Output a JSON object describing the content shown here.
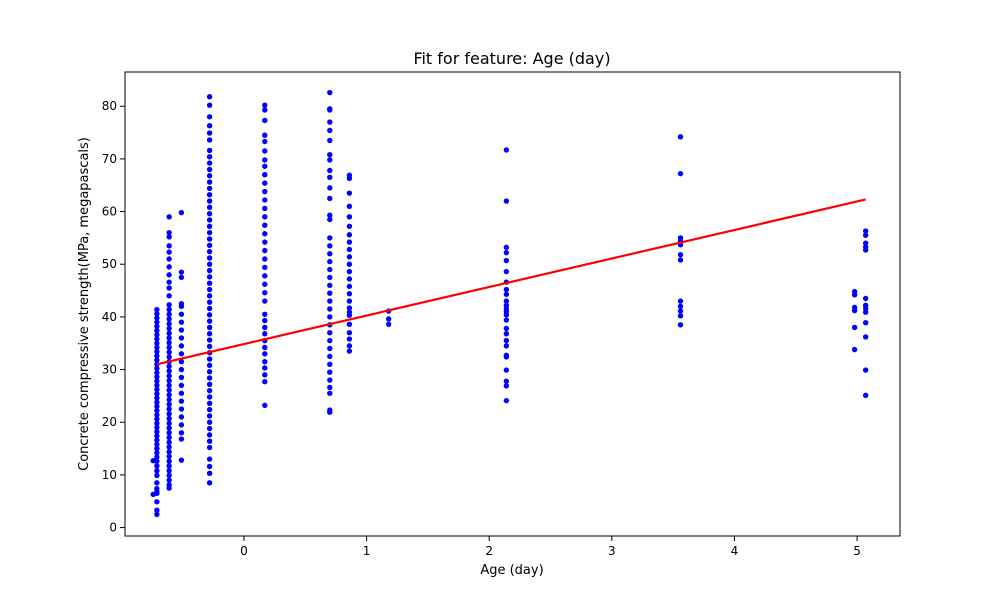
{
  "chart_data": {
    "type": "scatter",
    "title": "Fit for feature: Age (day)",
    "xlabel": "Age (day)",
    "ylabel": "Concrete compressive strength(MPa, megapascals)",
    "xlim": [
      -0.97,
      5.35
    ],
    "ylim": [
      -1.6,
      86.5
    ],
    "xticks": [
      0,
      1,
      2,
      3,
      4,
      5
    ],
    "yticks": [
      0,
      10,
      20,
      30,
      40,
      50,
      60,
      70,
      80
    ],
    "grid": false,
    "legend": "none",
    "colors": {
      "points": "#0000ff",
      "fit_line": "#ff0000"
    },
    "groups": [
      {
        "x": -0.71,
        "y": [
          2.5,
          3.3,
          4.9,
          6.5,
          6.8,
          7.4,
          8.5,
          9.9,
          10.8,
          11.7,
          12.6,
          13.4,
          14.2,
          15.0,
          15.8,
          16.6,
          17.4,
          18.2,
          19.0,
          19.8,
          20.6,
          21.4,
          22.2,
          23.0,
          23.8,
          24.6,
          25.4,
          26.2,
          27.0,
          27.8,
          28.6,
          29.4,
          30.2,
          31.0,
          31.8,
          32.6,
          33.4,
          34.2,
          35.0,
          35.8,
          36.6,
          37.4,
          38.2,
          39.0,
          39.8,
          40.6,
          41.4
        ]
      },
      {
        "x": -0.74,
        "y": [
          6.3,
          12.7
        ]
      },
      {
        "x": -0.61,
        "y": [
          7.5,
          8.1,
          9.0,
          9.9,
          10.8,
          11.7,
          12.6,
          13.5,
          14.4,
          15.3,
          16.2,
          17.1,
          18.0,
          18.9,
          19.8,
          20.7,
          21.6,
          22.5,
          23.4,
          24.3,
          25.2,
          26.1,
          27.0,
          27.9,
          28.8,
          29.7,
          30.6,
          31.5,
          32.4,
          33.3,
          34.2,
          35.1,
          36.0,
          36.9,
          37.8,
          38.7,
          39.6,
          40.5,
          41.4,
          42.3,
          44.0,
          45.5,
          46.6,
          48.0,
          49.5,
          51.0,
          52.3,
          53.5,
          55.2,
          56.0,
          59.0
        ]
      },
      {
        "x": -0.51,
        "y": [
          12.8,
          16.8,
          18.0,
          19.5,
          21.0,
          22.5,
          24.0,
          25.5,
          27.0,
          28.5,
          30.0,
          31.5,
          33.0,
          34.5,
          36.0,
          37.5,
          39.0,
          40.5,
          42.0,
          42.5,
          47.5,
          48.5,
          59.8
        ]
      },
      {
        "x": -0.28,
        "y": [
          8.5,
          10.3,
          11.6,
          13.0,
          15.2,
          16.4,
          17.6,
          18.8,
          20.0,
          21.2,
          22.4,
          23.6,
          24.8,
          26.0,
          27.2,
          28.4,
          29.6,
          30.8,
          32.0,
          33.2,
          34.4,
          35.6,
          36.8,
          38.0,
          39.2,
          40.4,
          41.6,
          42.8,
          44.0,
          45.2,
          46.4,
          47.6,
          48.8,
          50.0,
          51.2,
          52.4,
          53.6,
          54.8,
          56.0,
          57.2,
          58.4,
          59.6,
          60.8,
          62.0,
          63.2,
          64.4,
          65.6,
          66.8,
          68.0,
          69.2,
          70.4,
          71.6,
          73.6,
          74.9,
          76.3,
          78.0,
          80.2,
          81.8
        ]
      },
      {
        "x": 0.17,
        "y": [
          23.2,
          27.7,
          29.0,
          30.3,
          31.5,
          33.0,
          34.2,
          35.5,
          36.8,
          38.0,
          39.3,
          40.5,
          43.0,
          44.6,
          46.2,
          47.8,
          49.4,
          51.0,
          52.6,
          54.2,
          55.8,
          57.4,
          59.0,
          60.6,
          62.2,
          63.8,
          65.4,
          67.0,
          68.6,
          69.8,
          71.5,
          73.3,
          74.5,
          77.3,
          79.3,
          80.2
        ]
      },
      {
        "x": 0.7,
        "y": [
          21.9,
          22.3,
          25.5,
          26.6,
          28.0,
          29.5,
          31.0,
          32.5,
          34.0,
          35.5,
          37.0,
          38.5,
          40.0,
          41.5,
          43.0,
          44.5,
          46.0,
          47.5,
          49.0,
          50.5,
          52.0,
          53.5,
          55.0,
          58.5,
          59.3,
          62.5,
          64.5,
          66.5,
          67.8,
          69.8,
          70.8,
          73.5,
          75.4,
          77.0,
          79.3,
          79.5,
          82.6
        ]
      },
      {
        "x": 0.86,
        "y": [
          33.5,
          34.5,
          35.8,
          37.0,
          38.6,
          40.3,
          40.9,
          41.7,
          43.0,
          44.4,
          45.8,
          47.2,
          48.6,
          50.0,
          51.4,
          52.8,
          54.2,
          55.6,
          57.2,
          59.0,
          61.0,
          63.5,
          66.3,
          66.9
        ]
      },
      {
        "x": 1.18,
        "y": [
          38.6,
          39.6,
          41.1
        ]
      },
      {
        "x": 2.14,
        "y": [
          24.1,
          26.9,
          27.8,
          29.9,
          32.4,
          32.7,
          34.5,
          35.5,
          36.8,
          37.8,
          39.4,
          40.4,
          41.0,
          41.5,
          42.2,
          43.0,
          44.3,
          45.2,
          46.6,
          48.6,
          50.7,
          52.2,
          53.2,
          62.0,
          71.7
        ]
      },
      {
        "x": 3.56,
        "y": [
          38.5,
          40.2,
          41.1,
          42.0,
          43.0,
          50.8,
          51.8,
          53.7,
          54.4,
          55.0,
          67.2,
          74.2
        ]
      },
      {
        "x": 4.98,
        "y": [
          33.8,
          38.0,
          41.2,
          41.8,
          44.2,
          44.8
        ]
      },
      {
        "x": 5.07,
        "y": [
          25.1,
          29.9,
          36.2,
          38.9,
          40.9,
          41.6,
          42.2,
          43.5,
          52.7,
          53.3,
          54.0,
          55.5,
          56.3
        ]
      }
    ],
    "fit_line": {
      "x": [
        -0.71,
        5.07
      ],
      "y": [
        31.0,
        62.3
      ]
    }
  }
}
